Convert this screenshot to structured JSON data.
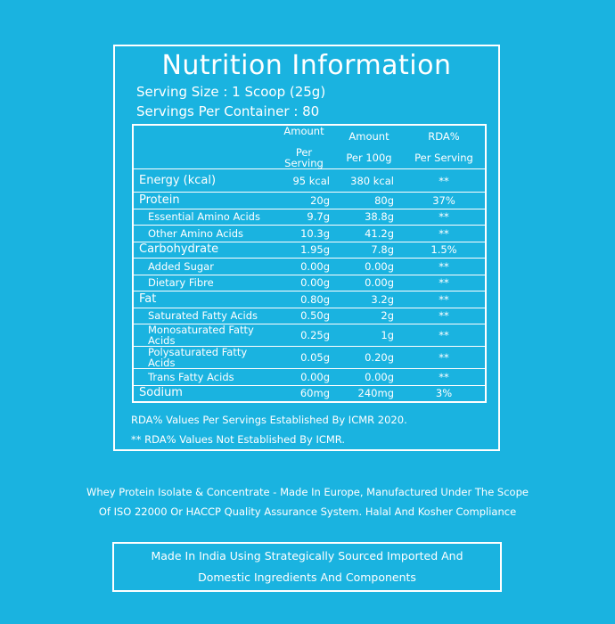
{
  "title": "Nutrition Information",
  "serving_size": "Serving Size : 1 Scoop (25g)",
  "servings_per_container": "Servings Per Container : 80",
  "headers": {
    "col1_line1": "Amount",
    "col1_line2": "Per Serving",
    "col2_line1": "Amount",
    "col2_line2": "Per 100g",
    "col3_line1": "RDA%",
    "col3_line2": "Per Serving"
  },
  "rows": [
    {
      "label": "Energy (kcal)",
      "per_serving": "95 kcal",
      "per_100g": "380 kcal",
      "rda": "**"
    },
    {
      "label": "Protein",
      "per_serving": "20g",
      "per_100g": "80g",
      "rda": "37%"
    },
    {
      "label": "Essential Amino Acids",
      "per_serving": "9.7g",
      "per_100g": "38.8g",
      "rda": "**"
    },
    {
      "label": "Other Amino Acids",
      "per_serving": "10.3g",
      "per_100g": "41.2g",
      "rda": "**"
    },
    {
      "label": "Carbohydrate",
      "per_serving": "1.95g",
      "per_100g": "7.8g",
      "rda": "1.5%"
    },
    {
      "label": "Added Sugar",
      "per_serving": "0.00g",
      "per_100g": "0.00g",
      "rda": "**"
    },
    {
      "label": "Dietary Fibre",
      "per_serving": "0.00g",
      "per_100g": "0.00g",
      "rda": "**"
    },
    {
      "label": "Fat",
      "per_serving": "0.80g",
      "per_100g": "3.2g",
      "rda": "**"
    },
    {
      "label": "Saturated Fatty Acids",
      "per_serving": "0.50g",
      "per_100g": "2g",
      "rda": "**"
    },
    {
      "label": "Monosaturated Fatty Acids",
      "per_serving": "0.25g",
      "per_100g": "1g",
      "rda": "**"
    },
    {
      "label": "Polysaturated Fatty Acids",
      "per_serving": "0.05g",
      "per_100g": "0.20g",
      "rda": "**"
    },
    {
      "label": "Trans Fatty Acids",
      "per_serving": "0.00g",
      "per_100g": "0.00g",
      "rda": "**"
    },
    {
      "label": "Sodium",
      "per_serving": "60mg",
      "per_100g": "240mg",
      "rda": "3%"
    }
  ],
  "notes": {
    "rda_note": "RDA% Values Per Servings Established By ICMR 2020.",
    "not_established": "** RDA% Values Not Established By ICMR."
  },
  "manufacturing": {
    "line1": "Whey Protein Isolate & Concentrate - Made In Europe, Manufactured Under The Scope",
    "line2": "Of ISO 22000 Or HACCP Quality Assurance System. Halal And Kosher Compliance"
  },
  "made_in_india": {
    "line1": "Made In India Using Strategically Sourced Imported And",
    "line2": "Domestic Ingredients And Components"
  },
  "colors": {
    "background": "#1ab3e0",
    "foreground": "#ffffff"
  }
}
